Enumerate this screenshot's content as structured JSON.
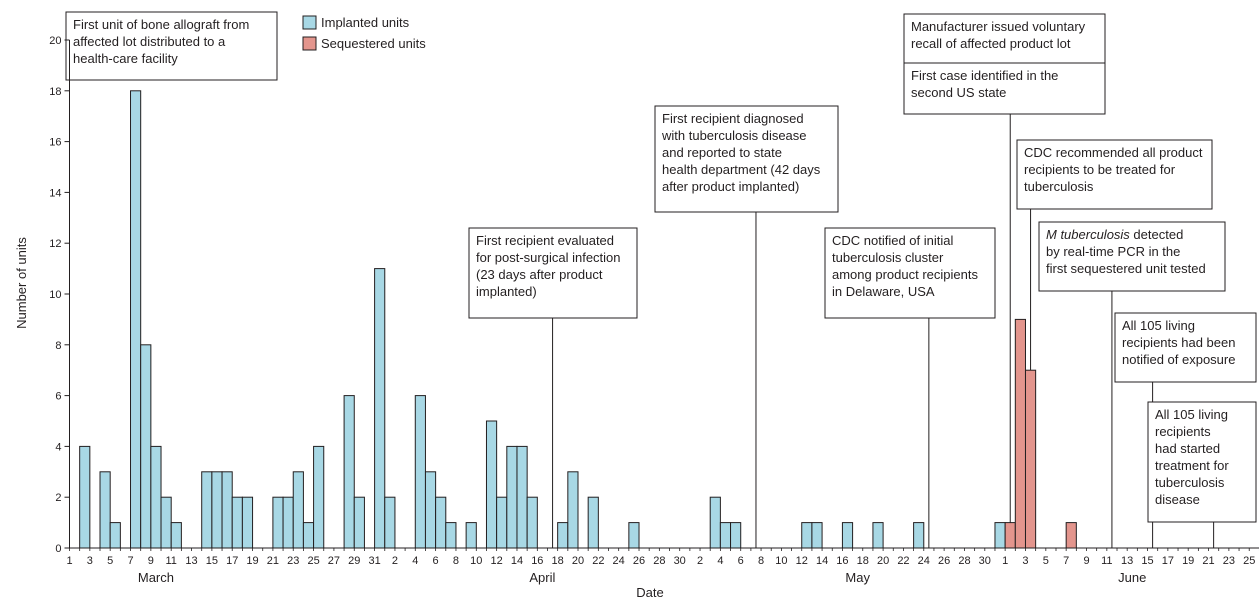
{
  "chart_data": {
    "type": "bar",
    "xlabel": "Date",
    "ylabel": "Number of units",
    "ylim": [
      0,
      20
    ],
    "yticks": [
      0,
      2,
      4,
      6,
      8,
      10,
      12,
      14,
      16,
      18,
      20
    ],
    "grid": false,
    "legend_position": "top",
    "colors": {
      "implanted": "#a8d8e5",
      "sequestered": "#e3958d",
      "stroke": "#231f20"
    },
    "x_day_labels": [
      "1",
      "3",
      "5",
      "7",
      "9",
      "11",
      "13",
      "15",
      "17",
      "19",
      "21",
      "23",
      "25",
      "27",
      "29",
      "31",
      "2",
      "4",
      "6",
      "8",
      "10",
      "12",
      "14",
      "16",
      "18",
      "20",
      "22",
      "24",
      "26",
      "28",
      "30",
      "2",
      "4",
      "6",
      "8",
      "10",
      "12",
      "14",
      "16",
      "18",
      "20",
      "22",
      "24",
      "26",
      "28",
      "30",
      "1",
      "3",
      "5",
      "7",
      "9",
      "11",
      "13",
      "15",
      "17",
      "19",
      "21",
      "23",
      "25"
    ],
    "months": [
      {
        "label": "March",
        "center_date": "03-09"
      },
      {
        "label": "April",
        "center_date": "04-16"
      },
      {
        "label": "May",
        "center_date": "05-17"
      },
      {
        "label": "June",
        "center_date": "06-13"
      }
    ],
    "series": [
      {
        "name": "Implanted units",
        "color": "#a8d8e5",
        "points": [
          {
            "date": "03-02",
            "value": 4
          },
          {
            "date": "03-04",
            "value": 3
          },
          {
            "date": "03-05",
            "value": 1
          },
          {
            "date": "03-07",
            "value": 18
          },
          {
            "date": "03-08",
            "value": 8
          },
          {
            "date": "03-09",
            "value": 4
          },
          {
            "date": "03-10",
            "value": 2
          },
          {
            "date": "03-11",
            "value": 1
          },
          {
            "date": "03-14",
            "value": 3
          },
          {
            "date": "03-15",
            "value": 3
          },
          {
            "date": "03-16",
            "value": 3
          },
          {
            "date": "03-17",
            "value": 2
          },
          {
            "date": "03-18",
            "value": 2
          },
          {
            "date": "03-21",
            "value": 2
          },
          {
            "date": "03-22",
            "value": 2
          },
          {
            "date": "03-23",
            "value": 3
          },
          {
            "date": "03-24",
            "value": 1
          },
          {
            "date": "03-25",
            "value": 4
          },
          {
            "date": "03-28",
            "value": 6
          },
          {
            "date": "03-29",
            "value": 2
          },
          {
            "date": "03-31",
            "value": 11
          },
          {
            "date": "04-01",
            "value": 2
          },
          {
            "date": "04-04",
            "value": 6
          },
          {
            "date": "04-05",
            "value": 3
          },
          {
            "date": "04-06",
            "value": 2
          },
          {
            "date": "04-07",
            "value": 1
          },
          {
            "date": "04-09",
            "value": 1
          },
          {
            "date": "04-11",
            "value": 5
          },
          {
            "date": "04-12",
            "value": 2
          },
          {
            "date": "04-13",
            "value": 4
          },
          {
            "date": "04-14",
            "value": 4
          },
          {
            "date": "04-15",
            "value": 2
          },
          {
            "date": "04-18",
            "value": 1
          },
          {
            "date": "04-19",
            "value": 3
          },
          {
            "date": "04-21",
            "value": 2
          },
          {
            "date": "04-25",
            "value": 1
          },
          {
            "date": "05-03",
            "value": 2
          },
          {
            "date": "05-04",
            "value": 1
          },
          {
            "date": "05-05",
            "value": 1
          },
          {
            "date": "05-12",
            "value": 1
          },
          {
            "date": "05-13",
            "value": 1
          },
          {
            "date": "05-16",
            "value": 1
          },
          {
            "date": "05-19",
            "value": 1
          },
          {
            "date": "05-23",
            "value": 1
          },
          {
            "date": "05-31",
            "value": 1
          }
        ]
      },
      {
        "name": "Sequestered units",
        "color": "#e3958d",
        "points": [
          {
            "date": "06-01",
            "value": 1
          },
          {
            "date": "06-02",
            "value": 9
          },
          {
            "date": "06-03",
            "value": 7
          },
          {
            "date": "06-07",
            "value": 1
          }
        ]
      }
    ],
    "annotations": [
      {
        "lines": [
          "First unit of bone allograft from",
          "affected lot distributed to a",
          "health-care facility"
        ],
        "date": "03-01",
        "italic_first_words": 0
      },
      {
        "lines": [
          "First recipient evaluated",
          "for post-surgical infection",
          "(23 days after product",
          "implanted)"
        ],
        "date": "04-17",
        "italic_first_words": 0
      },
      {
        "lines": [
          "First recipient diagnosed",
          "with tuberculosis disease",
          "and reported to state",
          "health department (42 days",
          "after product implanted)"
        ],
        "date": "05-07",
        "italic_first_words": 0
      },
      {
        "lines": [
          "CDC notified of initial",
          "tuberculosis cluster",
          "among product recipients",
          "in Delaware, USA"
        ],
        "date": "05-24",
        "italic_first_words": 0
      },
      {
        "lines": [
          "Manufacturer issued voluntary",
          "recall of affected product lot"
        ],
        "date": "06-03",
        "italic_first_words": 0
      },
      {
        "lines": [
          "First case identified in the",
          "second US state"
        ],
        "date": "06-01",
        "italic_first_words": 0
      },
      {
        "lines": [
          "CDC recommended all product",
          "recipients to be treated for",
          "tuberculosis"
        ],
        "date": "06-03",
        "italic_first_words": 0
      },
      {
        "lines": [
          "M tuberculosis detected",
          "by real-time PCR in the",
          "first sequestered unit tested"
        ],
        "date": "06-11",
        "italic_first_words": 2
      },
      {
        "lines": [
          "All 105 living",
          "recipients had been",
          "notified of exposure"
        ],
        "date": "06-15",
        "italic_first_words": 0
      },
      {
        "lines": [
          "All 105 living",
          "recipients",
          "had started",
          "treatment for",
          "tuberculosis",
          "disease"
        ],
        "date": "06-21",
        "italic_first_words": 0
      }
    ]
  }
}
